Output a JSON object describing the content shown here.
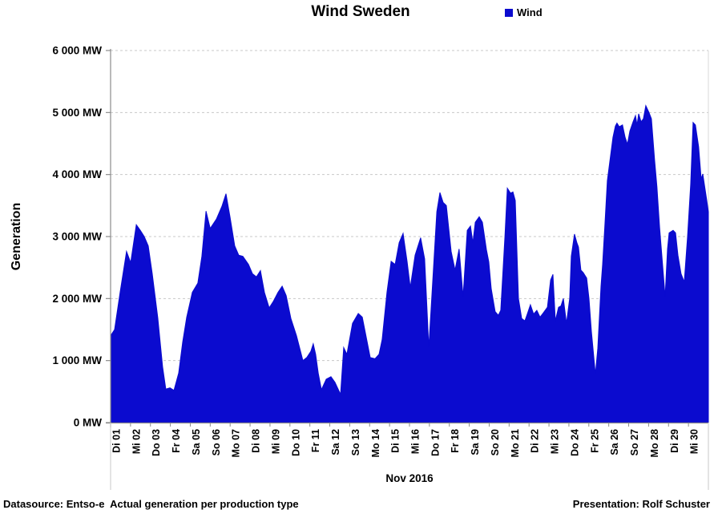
{
  "header": {
    "title": "Wind Sweden",
    "legend": {
      "label": "Wind",
      "color": "#0b0bcf"
    }
  },
  "footer": {
    "left": "Datasource: Entso-e  Actual generation per production type",
    "right": "Presentation: Rolf Schuster"
  },
  "chart_data": {
    "type": "area",
    "title": "Wind Sweden",
    "series_name": "Wind",
    "xlabel": "Nov 2016",
    "ylabel": "Generation",
    "ylim": [
      0,
      6000
    ],
    "y_tick_step": 1000,
    "y_tick_labels": [
      "0 MW",
      "1 000 MW",
      "2 000 MW",
      "3 000 MW",
      "4 000 MW",
      "5 000 MW",
      "6 000 MW"
    ],
    "x_tick_labels": [
      "Di 01",
      "Mi 02",
      "Do 03",
      "Fr 04",
      "Sa 05",
      "So 06",
      "Mo 07",
      "Di 08",
      "Mi 09",
      "Do 10",
      "Fr 11",
      "Sa 12",
      "So 13",
      "Mo 14",
      "Di 15",
      "Mi 16",
      "Do 17",
      "Fr 18",
      "Sa 19",
      "So 20",
      "Mo 21",
      "Di 22",
      "Mi 23",
      "Do 24",
      "Fr 25",
      "Sa 26",
      "So 27",
      "Mo 28",
      "Di 29",
      "Mi 30"
    ],
    "x_range_days": [
      0,
      30
    ],
    "grid": "horizontal-dashed",
    "legend_position": "top-right",
    "area_color": "#0b0bcf",
    "axis_color": "#8c8c8c",
    "grid_color": "#c8c8c8",
    "points_day_mw": [
      [
        0.0,
        1400
      ],
      [
        0.2,
        1500
      ],
      [
        0.48,
        2100
      ],
      [
        0.8,
        2760
      ],
      [
        1.01,
        2580
      ],
      [
        1.29,
        3190
      ],
      [
        1.49,
        3100
      ],
      [
        1.69,
        3000
      ],
      [
        1.89,
        2850
      ],
      [
        2.09,
        2400
      ],
      [
        2.37,
        1690
      ],
      [
        2.61,
        900
      ],
      [
        2.77,
        540
      ],
      [
        2.98,
        560
      ],
      [
        3.18,
        520
      ],
      [
        3.42,
        800
      ],
      [
        3.62,
        1300
      ],
      [
        3.82,
        1700
      ],
      [
        4.1,
        2100
      ],
      [
        4.38,
        2250
      ],
      [
        4.58,
        2680
      ],
      [
        4.79,
        3410
      ],
      [
        5.0,
        3130
      ],
      [
        5.31,
        3280
      ],
      [
        5.59,
        3490
      ],
      [
        5.79,
        3690
      ],
      [
        5.99,
        3320
      ],
      [
        6.23,
        2850
      ],
      [
        6.43,
        2700
      ],
      [
        6.64,
        2680
      ],
      [
        6.92,
        2550
      ],
      [
        7.12,
        2400
      ],
      [
        7.32,
        2350
      ],
      [
        7.52,
        2450
      ],
      [
        7.72,
        2100
      ],
      [
        7.96,
        1850
      ],
      [
        8.16,
        1950
      ],
      [
        8.4,
        2100
      ],
      [
        8.61,
        2200
      ],
      [
        8.81,
        2050
      ],
      [
        9.05,
        1680
      ],
      [
        9.33,
        1400
      ],
      [
        9.45,
        1250
      ],
      [
        9.65,
        1000
      ],
      [
        9.85,
        1050
      ],
      [
        10.05,
        1150
      ],
      [
        10.17,
        1270
      ],
      [
        10.29,
        1100
      ],
      [
        10.42,
        800
      ],
      [
        10.58,
        530
      ],
      [
        10.82,
        700
      ],
      [
        11.06,
        740
      ],
      [
        11.26,
        650
      ],
      [
        11.54,
        455
      ],
      [
        11.7,
        1210
      ],
      [
        11.86,
        1100
      ],
      [
        12.14,
        1600
      ],
      [
        12.43,
        1760
      ],
      [
        12.63,
        1700
      ],
      [
        12.83,
        1380
      ],
      [
        13.03,
        1050
      ],
      [
        13.27,
        1030
      ],
      [
        13.47,
        1100
      ],
      [
        13.63,
        1340
      ],
      [
        13.87,
        2100
      ],
      [
        14.08,
        2600
      ],
      [
        14.28,
        2550
      ],
      [
        14.48,
        2900
      ],
      [
        14.68,
        3050
      ],
      [
        14.88,
        2600
      ],
      [
        15.04,
        2180
      ],
      [
        15.28,
        2700
      ],
      [
        15.56,
        2980
      ],
      [
        15.76,
        2640
      ],
      [
        15.97,
        1210
      ],
      [
        16.17,
        2300
      ],
      [
        16.37,
        3400
      ],
      [
        16.53,
        3710
      ],
      [
        16.69,
        3550
      ],
      [
        16.85,
        3500
      ],
      [
        17.09,
        2760
      ],
      [
        17.29,
        2460
      ],
      [
        17.49,
        2800
      ],
      [
        17.69,
        2030
      ],
      [
        17.9,
        3100
      ],
      [
        18.06,
        3170
      ],
      [
        18.18,
        2900
      ],
      [
        18.3,
        3230
      ],
      [
        18.5,
        3320
      ],
      [
        18.66,
        3230
      ],
      [
        18.86,
        2790
      ],
      [
        18.98,
        2590
      ],
      [
        19.1,
        2160
      ],
      [
        19.3,
        1790
      ],
      [
        19.46,
        1730
      ],
      [
        19.58,
        1810
      ],
      [
        19.79,
        3000
      ],
      [
        19.91,
        3780
      ],
      [
        20.07,
        3700
      ],
      [
        20.19,
        3720
      ],
      [
        20.31,
        3580
      ],
      [
        20.47,
        2000
      ],
      [
        20.63,
        1680
      ],
      [
        20.79,
        1640
      ],
      [
        20.91,
        1750
      ],
      [
        21.07,
        1900
      ],
      [
        21.23,
        1750
      ],
      [
        21.39,
        1810
      ],
      [
        21.55,
        1700
      ],
      [
        21.72,
        1770
      ],
      [
        21.92,
        1860
      ],
      [
        22.08,
        2300
      ],
      [
        22.2,
        2390
      ],
      [
        22.32,
        1640
      ],
      [
        22.48,
        1860
      ],
      [
        22.6,
        1880
      ],
      [
        22.72,
        2000
      ],
      [
        22.88,
        1600
      ],
      [
        23.04,
        2000
      ],
      [
        23.12,
        2680
      ],
      [
        23.28,
        3040
      ],
      [
        23.4,
        2900
      ],
      [
        23.48,
        2830
      ],
      [
        23.6,
        2460
      ],
      [
        23.72,
        2420
      ],
      [
        23.89,
        2330
      ],
      [
        24.01,
        2000
      ],
      [
        24.13,
        1470
      ],
      [
        24.33,
        780
      ],
      [
        24.45,
        1200
      ],
      [
        24.61,
        2200
      ],
      [
        24.69,
        2550
      ],
      [
        24.81,
        3200
      ],
      [
        24.93,
        3900
      ],
      [
        25.09,
        4300
      ],
      [
        25.21,
        4600
      ],
      [
        25.33,
        4780
      ],
      [
        25.41,
        4830
      ],
      [
        25.53,
        4770
      ],
      [
        25.69,
        4800
      ],
      [
        25.82,
        4600
      ],
      [
        25.94,
        4490
      ],
      [
        26.06,
        4700
      ],
      [
        26.22,
        4850
      ],
      [
        26.34,
        4950
      ],
      [
        26.42,
        4800
      ],
      [
        26.5,
        4980
      ],
      [
        26.62,
        4850
      ],
      [
        26.74,
        4900
      ],
      [
        26.86,
        5110
      ],
      [
        27.02,
        5000
      ],
      [
        27.14,
        4900
      ],
      [
        27.3,
        4230
      ],
      [
        27.42,
        3800
      ],
      [
        27.55,
        3150
      ],
      [
        27.71,
        2500
      ],
      [
        27.83,
        2030
      ],
      [
        27.95,
        2800
      ],
      [
        28.03,
        3060
      ],
      [
        28.23,
        3100
      ],
      [
        28.35,
        3060
      ],
      [
        28.47,
        2700
      ],
      [
        28.63,
        2400
      ],
      [
        28.79,
        2270
      ],
      [
        28.95,
        2980
      ],
      [
        29.11,
        3840
      ],
      [
        29.23,
        4840
      ],
      [
        29.35,
        4800
      ],
      [
        29.51,
        4450
      ],
      [
        29.64,
        3930
      ],
      [
        29.72,
        4010
      ],
      [
        29.92,
        3580
      ],
      [
        30.0,
        3400
      ]
    ]
  }
}
